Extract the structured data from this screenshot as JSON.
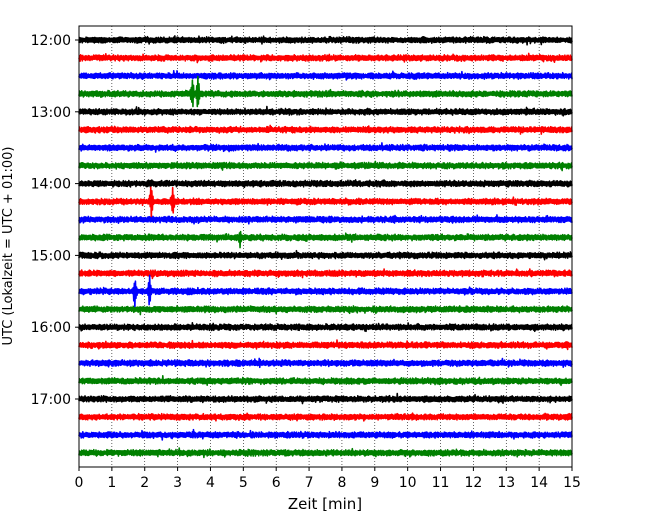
{
  "chart_data": {
    "type": "line",
    "title": "",
    "xlabel": "Zeit  [min]",
    "ylabel": "UTC (Lokalzeit = UTC + 01:00)",
    "xlim": [
      0,
      15
    ],
    "x_ticks": [
      0,
      1,
      2,
      3,
      4,
      5,
      6,
      7,
      8,
      9,
      10,
      11,
      12,
      13,
      14,
      15
    ],
    "y_tick_labels": [
      "12:00",
      "13:00",
      "14:00",
      "15:00",
      "16:00",
      "17:00"
    ],
    "grid": "vertical dotted",
    "trace_interval_minutes": 15,
    "line_start_times": [
      "12:00",
      "12:15",
      "12:30",
      "12:45",
      "13:00",
      "13:15",
      "13:30",
      "13:45",
      "14:00",
      "14:15",
      "14:30",
      "14:45",
      "15:00",
      "15:15",
      "15:30",
      "15:45",
      "16:00",
      "16:15",
      "16:30",
      "16:45",
      "17:00",
      "17:15",
      "17:30",
      "17:45"
    ],
    "line_colors": [
      "#000000",
      "#ff0000",
      "#0000ff",
      "#008000"
    ],
    "events": [
      {
        "line": "12:45",
        "x": [
          3.45,
          3.62
        ],
        "amplitude": "large"
      },
      {
        "line": "14:15",
        "x": [
          2.2,
          2.85
        ],
        "amplitude": "large"
      },
      {
        "line": "14:45",
        "x": [
          4.9
        ],
        "amplitude": "medium"
      },
      {
        "line": "15:30",
        "x": [
          1.7,
          2.15
        ],
        "amplitude": "large"
      },
      {
        "line": "14:30",
        "x": [
          9.6
        ],
        "amplitude": "small"
      },
      {
        "line": "13:45",
        "x": [
          7.8
        ],
        "amplitude": "small"
      }
    ]
  }
}
